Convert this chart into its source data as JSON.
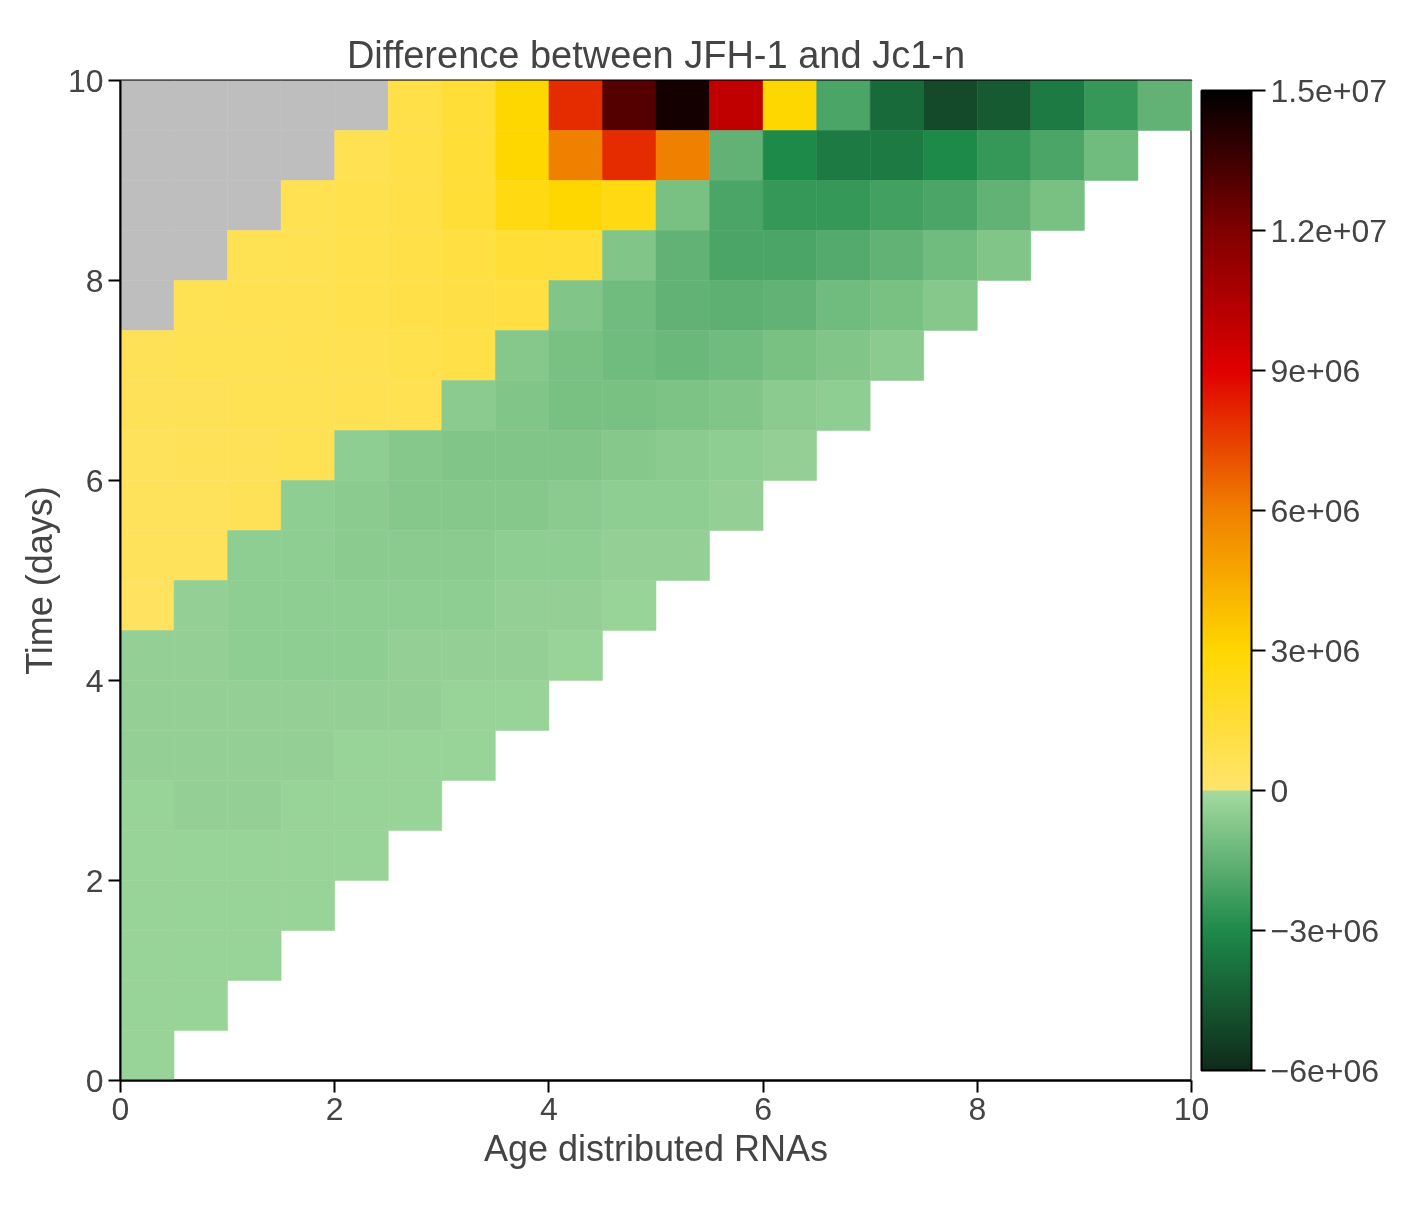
{
  "chart_data": {
    "type": "heatmap",
    "title": "Difference between JFH-1 and Jc1-n",
    "xlabel": "Age distributed RNAs",
    "ylabel": "Time (days)",
    "x": [
      0.25,
      0.75,
      1.25,
      1.75,
      2.25,
      2.75,
      3.25,
      3.75,
      4.25,
      4.75,
      5.25,
      5.75,
      6.25,
      6.75,
      7.25,
      7.75,
      8.25,
      8.75,
      9.25,
      9.75
    ],
    "xlim": [
      0,
      10
    ],
    "ylim": [
      0,
      10
    ],
    "xticks": [
      0,
      2,
      4,
      6,
      8,
      10
    ],
    "yticks": [
      0,
      2,
      4,
      6,
      8,
      10
    ],
    "color": "#bebebe",
    "clim": [
      -6000000,
      15000000
    ],
    "cticks": [
      {
        "value": -6000000,
        "label": "−6e+06"
      },
      {
        "value": -3000000,
        "label": "−3e+06"
      },
      {
        "value": 0,
        "label": "0"
      },
      {
        "value": 3000000,
        "label": "3e+06"
      },
      {
        "value": 6000000,
        "label": "6e+06"
      },
      {
        "value": 9000000,
        "label": "9e+06"
      },
      {
        "value": 12000000,
        "label": "1.2e+07"
      },
      {
        "value": 15000000,
        "label": "1.5e+07"
      }
    ],
    "cells": [
      [
        null,
        null,
        null,
        null,
        null,
        1000000,
        1500000,
        3000000,
        8000000,
        13000000,
        14500000,
        10000000,
        3000000,
        -2000000,
        -4000000,
        -5000000,
        -4500000,
        -3500000,
        -2500000,
        -1500000
      ],
      [
        null,
        null,
        null,
        null,
        800000,
        1000000,
        1500000,
        3000000,
        6000000,
        8000000,
        6000000,
        -1500000,
        -3000000,
        -3500000,
        -3500000,
        -3000000,
        -2500000,
        -2000000,
        -1200000
      ],
      [
        null,
        null,
        null,
        800000,
        900000,
        1000000,
        1500000,
        2500000,
        3000000,
        2500000,
        -1000000,
        -2000000,
        -2500000,
        -2500000,
        -2200000,
        -2000000,
        -1500000,
        -1000000
      ],
      [
        null,
        null,
        700000,
        800000,
        900000,
        1000000,
        1200000,
        1500000,
        1500000,
        -800000,
        -1500000,
        -2000000,
        -2000000,
        -1800000,
        -1500000,
        -1200000,
        -800000
      ],
      [
        null,
        700000,
        800000,
        800000,
        900000,
        1000000,
        1100000,
        1200000,
        -800000,
        -1200000,
        -1500000,
        -1600000,
        -1500000,
        -1200000,
        -1000000,
        -700000
      ],
      [
        600000,
        700000,
        700000,
        800000,
        800000,
        900000,
        1000000,
        -700000,
        -1000000,
        -1200000,
        -1300000,
        -1200000,
        -1000000,
        -800000,
        -600000
      ],
      [
        600000,
        600000,
        700000,
        700000,
        800000,
        800000,
        -600000,
        -800000,
        -1000000,
        -1000000,
        -900000,
        -800000,
        -600000,
        -500000
      ],
      [
        500000,
        600000,
        600000,
        700000,
        -500000,
        -700000,
        -800000,
        -800000,
        -800000,
        -700000,
        -600000,
        -500000,
        -400000
      ],
      [
        500000,
        500000,
        600000,
        -500000,
        -600000,
        -700000,
        -700000,
        -700000,
        -600000,
        -500000,
        -500000,
        -400000
      ],
      [
        500000,
        500000,
        -500000,
        -500000,
        -600000,
        -600000,
        -600000,
        -500000,
        -500000,
        -400000,
        -400000
      ],
      [
        400000,
        -400000,
        -500000,
        -500000,
        -500000,
        -500000,
        -500000,
        -400000,
        -400000,
        -300000
      ],
      [
        -400000,
        -400000,
        -500000,
        -500000,
        -500000,
        -400000,
        -400000,
        -400000,
        -300000
      ],
      [
        -400000,
        -400000,
        -400000,
        -400000,
        -400000,
        -400000,
        -300000,
        -300000
      ],
      [
        -400000,
        -400000,
        -400000,
        -400000,
        -300000,
        -300000,
        -300000
      ],
      [
        -300000,
        -400000,
        -400000,
        -300000,
        -300000,
        -300000
      ],
      [
        -300000,
        -300000,
        -300000,
        -300000,
        -300000
      ],
      [
        -300000,
        -300000,
        -300000,
        -300000
      ],
      [
        -300000,
        -300000,
        -300000
      ],
      [
        -300000,
        -300000
      ],
      [
        -300000
      ]
    ]
  }
}
